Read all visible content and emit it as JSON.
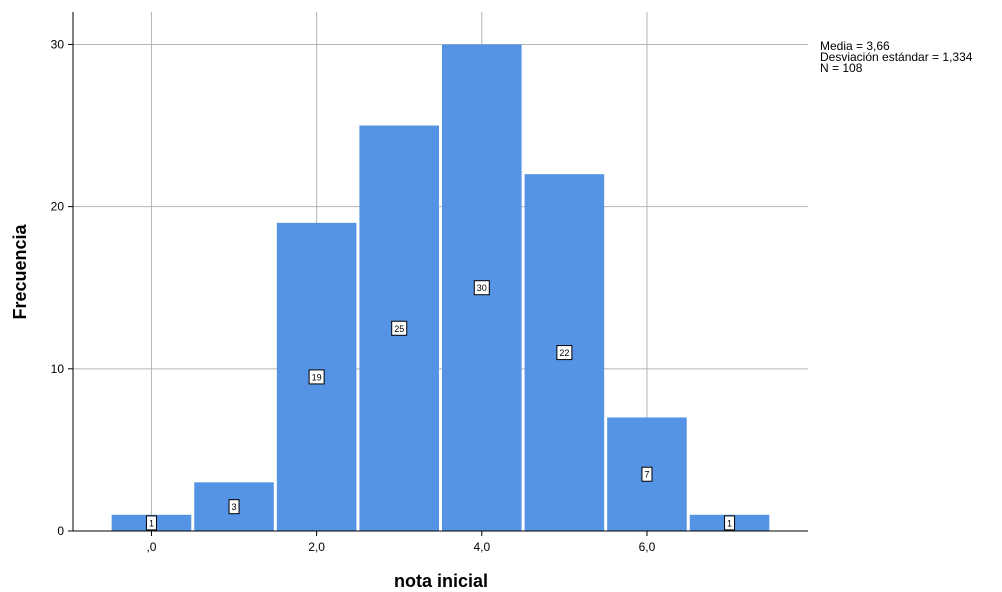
{
  "chart_data": {
    "type": "bar",
    "subtype": "histogram",
    "bins": [
      {
        "center": 0,
        "value": 1,
        "label": "1"
      },
      {
        "center": 1,
        "value": 3,
        "label": "3"
      },
      {
        "center": 2,
        "value": 19,
        "label": "19"
      },
      {
        "center": 3,
        "value": 25,
        "label": "25"
      },
      {
        "center": 4,
        "value": 30,
        "label": "30"
      },
      {
        "center": 5,
        "value": 22,
        "label": "22"
      },
      {
        "center": 6,
        "value": 7,
        "label": "7"
      },
      {
        "center": 7,
        "value": 1,
        "label": "1"
      }
    ],
    "bin_width": 1,
    "xlabel": "nota inicial",
    "ylabel": "Frecuencia",
    "xlim": [
      -0.95,
      7.95
    ],
    "ylim": [
      0,
      32
    ],
    "x_ticks": [
      {
        "value": 0,
        "label": ",0"
      },
      {
        "value": 2,
        "label": "2,0"
      },
      {
        "value": 4,
        "label": "4,0"
      },
      {
        "value": 6,
        "label": "6,0"
      }
    ],
    "y_ticks": [
      {
        "value": 0,
        "label": "0"
      },
      {
        "value": 10,
        "label": "10"
      },
      {
        "value": 20,
        "label": "20"
      },
      {
        "value": 30,
        "label": "30"
      }
    ],
    "grid": true,
    "bar_color": "#5594e5",
    "stats": {
      "mean": "Media = 3,66",
      "std": "Desviación estándar = 1,334",
      "n": "N = 108"
    }
  }
}
